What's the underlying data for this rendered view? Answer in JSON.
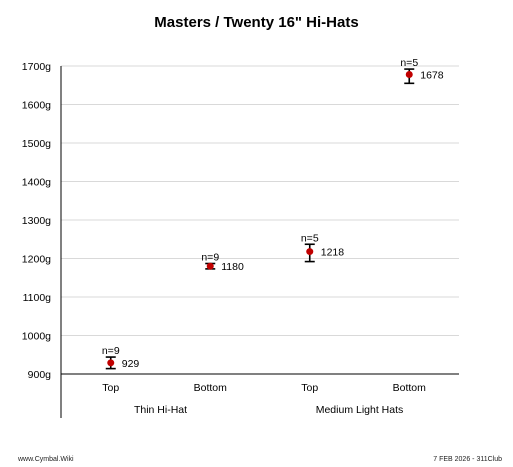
{
  "chart_data": {
    "type": "scatter",
    "title": "Masters / Twenty 16\" Hi-Hats",
    "ylim": [
      900,
      1700
    ],
    "yticks": [
      900,
      1000,
      1100,
      1200,
      1300,
      1400,
      1500,
      1600,
      1700
    ],
    "y_tick_suffix": "g",
    "grid": true,
    "groups": [
      {
        "label": "Thin Hi-Hat",
        "categories": [
          "Top",
          "Bottom"
        ]
      },
      {
        "label": "Medium Light Hats",
        "categories": [
          "Top",
          "Bottom"
        ]
      }
    ],
    "points": [
      {
        "group": "Thin Hi-Hat",
        "category": "Top",
        "value": 929,
        "err_low": 914,
        "err_high": 944,
        "n_label": "n=9",
        "value_label": "929"
      },
      {
        "group": "Thin Hi-Hat",
        "category": "Bottom",
        "value": 1180,
        "err_low": 1173,
        "err_high": 1187,
        "n_label": "n=9",
        "value_label": "1180"
      },
      {
        "group": "Medium Light Hats",
        "category": "Top",
        "value": 1218,
        "err_low": 1192,
        "err_high": 1237,
        "n_label": "n=5",
        "value_label": "1218"
      },
      {
        "group": "Medium Light Hats",
        "category": "Bottom",
        "value": 1678,
        "err_low": 1655,
        "err_high": 1692,
        "n_label": "n=5",
        "value_label": "1678"
      }
    ],
    "marker_color": "#c00000",
    "errorbar_color": "#000000",
    "grid_color": "#d9d9d9"
  },
  "footer": {
    "left": "www.Cymbal.Wiki",
    "right": "7 FEB 2026 - 311Club"
  }
}
